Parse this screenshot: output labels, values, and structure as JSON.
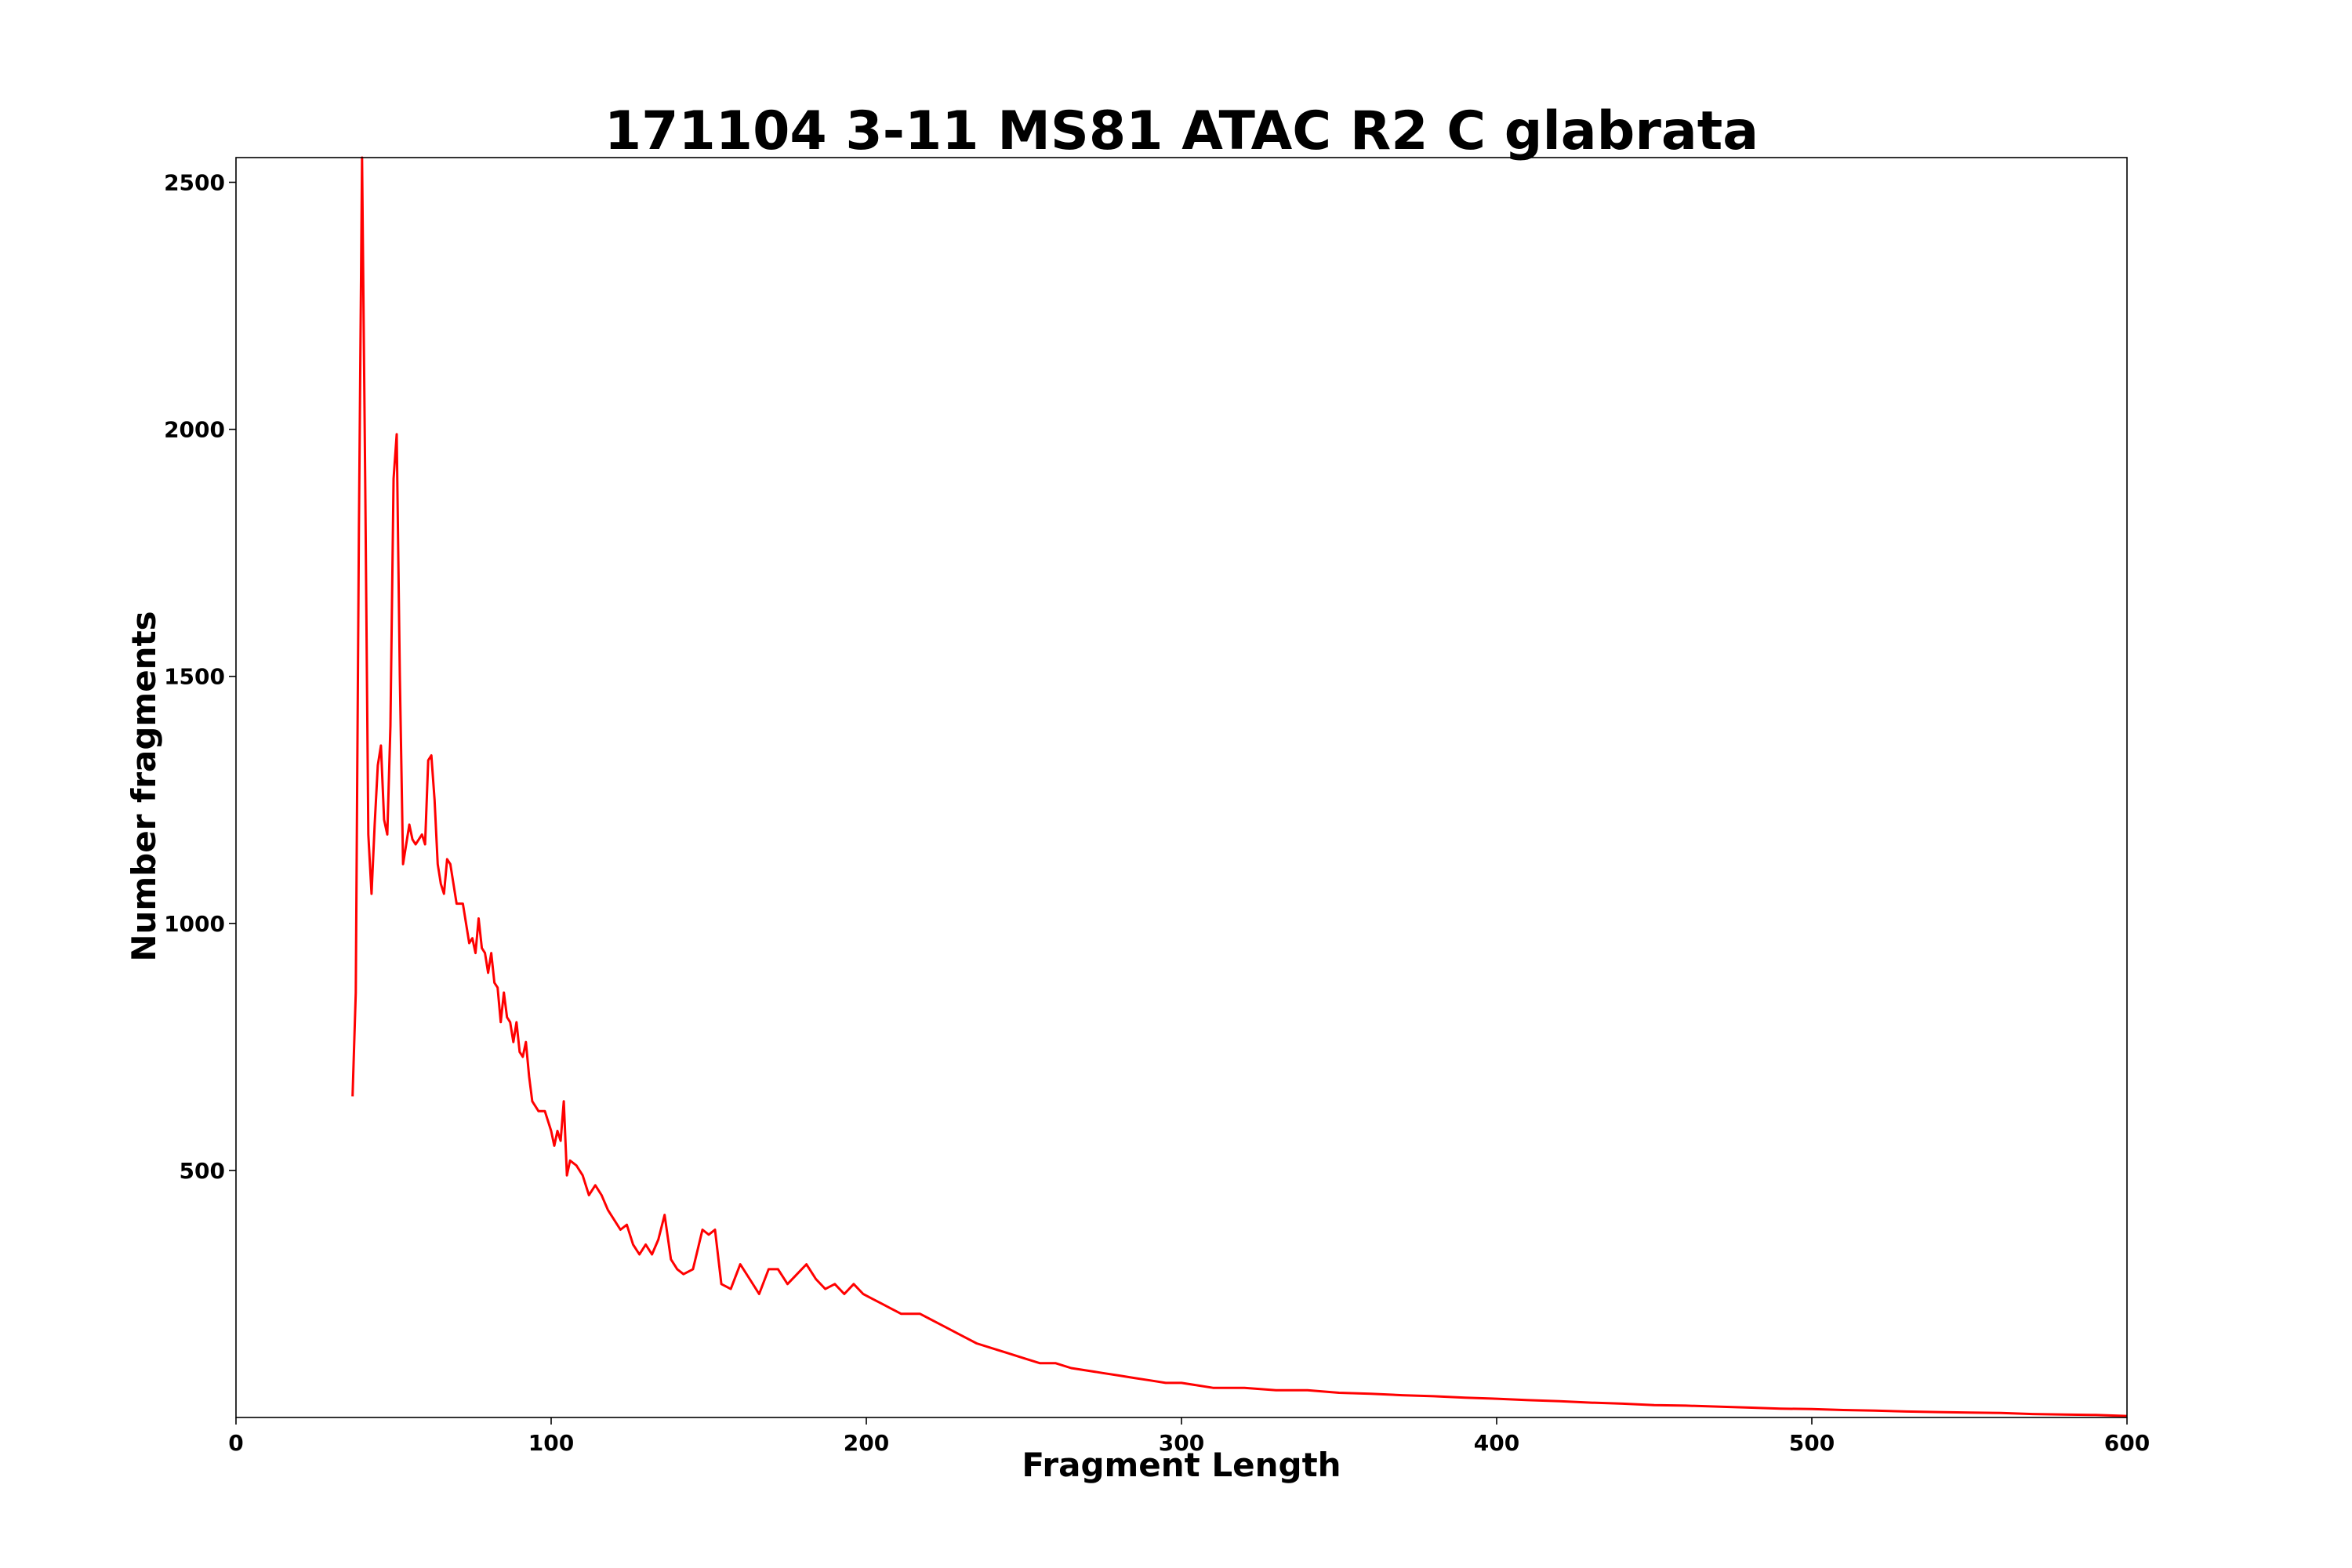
{
  "chart_data": {
    "type": "line",
    "title": "171104 3-11 MS81 ATAC R2 C glabrata",
    "xlabel": "Fragment Length",
    "ylabel": "Number fragments",
    "xlim": [
      0,
      600
    ],
    "ylim": [
      0,
      2550
    ],
    "xticks": [
      0,
      100,
      200,
      300,
      400,
      500,
      600
    ],
    "yticks": [
      500,
      1000,
      1500,
      2000,
      2500
    ],
    "grid": false,
    "series": [
      {
        "color": "#ff0000",
        "x": [
          37,
          38,
          39,
          40,
          41,
          42,
          43,
          44,
          45,
          46,
          47,
          48,
          49,
          50,
          51,
          52,
          53,
          54,
          55,
          56,
          57,
          58,
          59,
          60,
          61,
          62,
          63,
          64,
          65,
          66,
          67,
          68,
          70,
          72,
          74,
          75,
          76,
          77,
          78,
          79,
          80,
          81,
          82,
          83,
          84,
          85,
          86,
          87,
          88,
          89,
          90,
          91,
          92,
          93,
          94,
          96,
          98,
          100,
          101,
          102,
          103,
          104,
          105,
          106,
          108,
          110,
          112,
          114,
          116,
          118,
          120,
          122,
          124,
          126,
          128,
          130,
          132,
          134,
          136,
          138,
          140,
          142,
          145,
          148,
          150,
          152,
          154,
          157,
          160,
          163,
          166,
          169,
          172,
          175,
          178,
          181,
          184,
          187,
          190,
          193,
          196,
          199,
          202,
          205,
          208,
          211,
          214,
          217,
          220,
          223,
          226,
          229,
          232,
          235,
          240,
          245,
          250,
          255,
          260,
          265,
          270,
          275,
          280,
          285,
          290,
          295,
          300,
          305,
          310,
          320,
          330,
          340,
          350,
          360,
          370,
          380,
          390,
          400,
          410,
          420,
          430,
          440,
          450,
          460,
          470,
          480,
          490,
          500,
          510,
          520,
          530,
          540,
          550,
          560,
          570,
          580,
          590,
          600
        ],
        "y": [
          650,
          860,
          1800,
          2550,
          1900,
          1180,
          1060,
          1200,
          1320,
          1360,
          1210,
          1180,
          1400,
          1900,
          1990,
          1500,
          1120,
          1160,
          1200,
          1170,
          1160,
          1170,
          1180,
          1160,
          1330,
          1340,
          1250,
          1120,
          1080,
          1060,
          1130,
          1120,
          1040,
          1040,
          960,
          970,
          940,
          1010,
          950,
          940,
          900,
          940,
          880,
          870,
          800,
          860,
          810,
          800,
          760,
          800,
          740,
          730,
          760,
          690,
          640,
          620,
          620,
          580,
          550,
          580,
          560,
          640,
          490,
          520,
          510,
          490,
          450,
          470,
          450,
          420,
          400,
          380,
          390,
          350,
          330,
          350,
          330,
          360,
          410,
          320,
          300,
          290,
          300,
          380,
          370,
          380,
          270,
          260,
          310,
          280,
          250,
          300,
          300,
          270,
          290,
          310,
          280,
          260,
          270,
          250,
          270,
          250,
          240,
          230,
          220,
          210,
          210,
          210,
          200,
          190,
          180,
          170,
          160,
          150,
          140,
          130,
          120,
          110,
          110,
          100,
          95,
          90,
          85,
          80,
          75,
          70,
          70,
          65,
          60,
          60,
          55,
          55,
          50,
          48,
          45,
          43,
          40,
          38,
          35,
          33,
          30,
          28,
          25,
          24,
          22,
          20,
          18,
          17,
          15,
          14,
          12,
          11,
          10,
          9,
          7,
          6,
          5,
          3
        ]
      }
    ]
  }
}
